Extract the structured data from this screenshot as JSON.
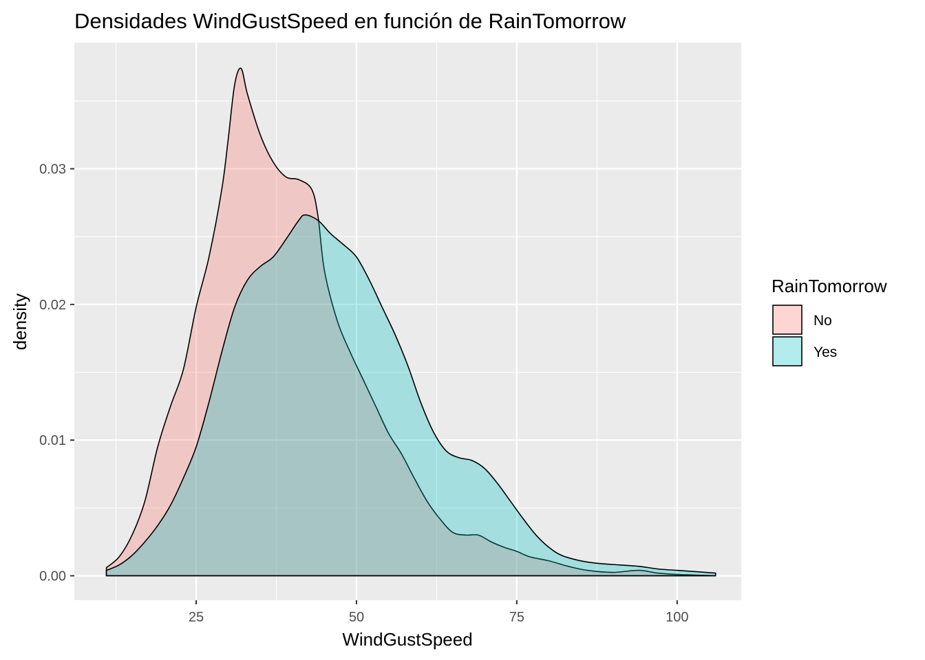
{
  "chart_data": {
    "type": "area",
    "title": "Densidades WindGustSpeed en función de RainTomorrow",
    "xlabel": "WindGustSpeed",
    "ylabel": "density",
    "xlim": [
      6,
      110
    ],
    "ylim": [
      -0.0018,
      0.0393
    ],
    "x_ticks": [
      25,
      50,
      75,
      100
    ],
    "x_tick_labels": [
      "25",
      "50",
      "75",
      "100"
    ],
    "y_ticks": [
      0.0,
      0.01,
      0.02,
      0.03
    ],
    "y_tick_labels": [
      "0.00",
      "0.01",
      "0.02",
      "0.03"
    ],
    "grid": true,
    "background_color": "#EBEBEB",
    "legend": {
      "title": "RainTomorrow",
      "position": "right"
    },
    "series": [
      {
        "name": "No",
        "fill": "#F8766D",
        "fill_opacity": 0.3,
        "points": [
          [
            11,
            0.0006
          ],
          [
            13,
            0.0014
          ],
          [
            15,
            0.003
          ],
          [
            17,
            0.0055
          ],
          [
            19,
            0.0095
          ],
          [
            21,
            0.0125
          ],
          [
            23,
            0.0152
          ],
          [
            25,
            0.0198
          ],
          [
            27,
            0.0235
          ],
          [
            29,
            0.0285
          ],
          [
            30,
            0.0322
          ],
          [
            31,
            0.0362
          ],
          [
            32,
            0.0374
          ],
          [
            33,
            0.0355
          ],
          [
            35,
            0.0325
          ],
          [
            37,
            0.0305
          ],
          [
            39,
            0.0294
          ],
          [
            41,
            0.0292
          ],
          [
            43,
            0.0285
          ],
          [
            44,
            0.0265
          ],
          [
            45,
            0.0225
          ],
          [
            47,
            0.0188
          ],
          [
            49,
            0.0165
          ],
          [
            51,
            0.0145
          ],
          [
            53,
            0.0125
          ],
          [
            55,
            0.0105
          ],
          [
            57,
            0.009
          ],
          [
            59,
            0.0072
          ],
          [
            61,
            0.0055
          ],
          [
            63,
            0.0042
          ],
          [
            65,
            0.0032
          ],
          [
            67,
            0.003
          ],
          [
            69,
            0.003
          ],
          [
            71,
            0.0025
          ],
          [
            73,
            0.0021
          ],
          [
            75,
            0.0018
          ],
          [
            77,
            0.0014
          ],
          [
            80,
            0.0011
          ],
          [
            83,
            0.0007
          ],
          [
            86,
            0.0004
          ],
          [
            90,
            0.00025
          ],
          [
            94,
            0.0004
          ],
          [
            97,
            0.0002
          ],
          [
            100,
            0.0001
          ],
          [
            103,
            5e-05
          ],
          [
            106,
            0.0
          ]
        ]
      },
      {
        "name": "Yes",
        "fill": "#00BFC4",
        "fill_opacity": 0.3,
        "points": [
          [
            11,
            0.0004
          ],
          [
            13,
            0.0008
          ],
          [
            15,
            0.0015
          ],
          [
            17,
            0.0025
          ],
          [
            19,
            0.0037
          ],
          [
            21,
            0.0052
          ],
          [
            23,
            0.0072
          ],
          [
            25,
            0.0095
          ],
          [
            27,
            0.0128
          ],
          [
            29,
            0.0165
          ],
          [
            31,
            0.0198
          ],
          [
            33,
            0.0218
          ],
          [
            35,
            0.0228
          ],
          [
            37,
            0.0235
          ],
          [
            39,
            0.0248
          ],
          [
            41,
            0.0262
          ],
          [
            42,
            0.0266
          ],
          [
            44,
            0.0262
          ],
          [
            46,
            0.0252
          ],
          [
            48,
            0.0244
          ],
          [
            50,
            0.0235
          ],
          [
            52,
            0.0218
          ],
          [
            54,
            0.0198
          ],
          [
            56,
            0.0178
          ],
          [
            58,
            0.0155
          ],
          [
            60,
            0.0128
          ],
          [
            62,
            0.0106
          ],
          [
            64,
            0.0092
          ],
          [
            66,
            0.0087
          ],
          [
            68,
            0.0085
          ],
          [
            70,
            0.0079
          ],
          [
            72,
            0.0068
          ],
          [
            74,
            0.0055
          ],
          [
            76,
            0.0042
          ],
          [
            78,
            0.003
          ],
          [
            80,
            0.0021
          ],
          [
            82,
            0.0015
          ],
          [
            85,
            0.0011
          ],
          [
            88,
            0.0009
          ],
          [
            91,
            0.0008
          ],
          [
            94,
            0.0007
          ],
          [
            97,
            0.0005
          ],
          [
            100,
            0.0004
          ],
          [
            103,
            0.0003
          ],
          [
            106,
            0.0002
          ]
        ]
      }
    ]
  }
}
